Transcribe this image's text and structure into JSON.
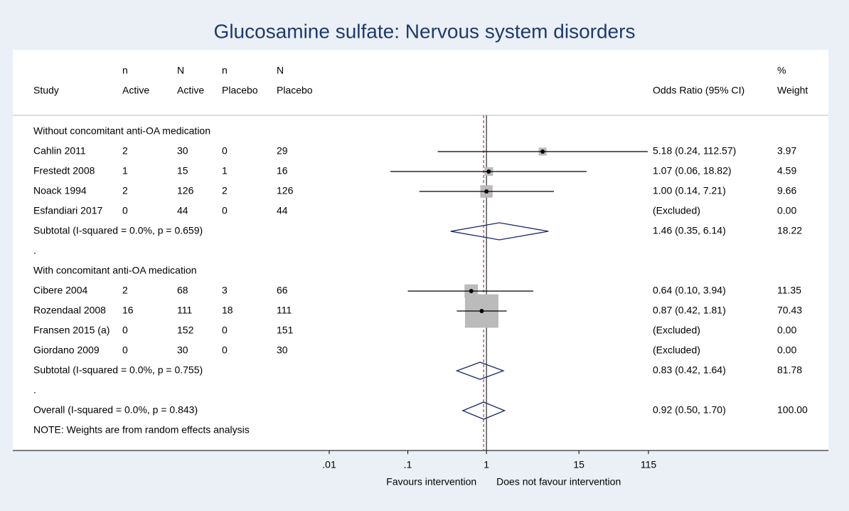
{
  "chart_data": {
    "type": "forest",
    "title": "Glucosamine sulfate: Nervous system disorders",
    "columns": [
      {
        "line2": "Study"
      },
      {
        "line1": "n",
        "line2": "Active"
      },
      {
        "line1": "N",
        "line2": "Active"
      },
      {
        "line1": "n",
        "line2": "Placebo"
      },
      {
        "line1": "N",
        "line2": "Placebo"
      },
      {
        "line2": "Odds Ratio (95% CI)"
      },
      {
        "line1": "%",
        "line2": "Weight"
      }
    ],
    "rows": [
      {
        "kind": "group",
        "label": "Without concomitant anti-OA medication"
      },
      {
        "kind": "study",
        "label": "Cahlin 2011",
        "counts": [
          2,
          30,
          0,
          29
        ],
        "or": 5.18,
        "lo": 0.24,
        "hi": 112.57,
        "ci_label": "5.18 (0.24, 112.57)",
        "weight": 3.97
      },
      {
        "kind": "study",
        "label": "Frestedt 2008",
        "counts": [
          1,
          15,
          1,
          16
        ],
        "or": 1.07,
        "lo": 0.06,
        "hi": 18.82,
        "ci_label": "1.07 (0.06, 18.82)",
        "weight": 4.59
      },
      {
        "kind": "study",
        "label": "Noack 1994",
        "counts": [
          2,
          126,
          2,
          126
        ],
        "or": 1.0,
        "lo": 0.14,
        "hi": 7.21,
        "ci_label": "1.00 (0.14, 7.21)",
        "weight": 9.66
      },
      {
        "kind": "study",
        "label": "Esfandiari 2017",
        "counts": [
          0,
          44,
          0,
          44
        ],
        "ci_label": "(Excluded)",
        "weight": 0,
        "weight_label": "0.00"
      },
      {
        "kind": "subtotal",
        "label": "Subtotal  (I-squared = 0.0%, p = 0.659)",
        "or": 1.46,
        "lo": 0.35,
        "hi": 6.14,
        "ci_label": "1.46 (0.35, 6.14)",
        "weight": 18.22
      },
      {
        "kind": "spacer",
        "label": "."
      },
      {
        "kind": "group",
        "label": "With concomitant anti-OA medication"
      },
      {
        "kind": "study",
        "label": "Cibere 2004",
        "counts": [
          2,
          68,
          3,
          66
        ],
        "or": 0.64,
        "lo": 0.1,
        "hi": 3.94,
        "ci_label": "0.64 (0.10, 3.94)",
        "weight": 11.35
      },
      {
        "kind": "study",
        "label": "Rozendaal 2008",
        "counts": [
          16,
          111,
          18,
          111
        ],
        "or": 0.87,
        "lo": 0.42,
        "hi": 1.81,
        "ci_label": "0.87 (0.42, 1.81)",
        "weight": 70.43
      },
      {
        "kind": "study",
        "label": "Fransen 2015 (a)",
        "counts": [
          0,
          152,
          0,
          151
        ],
        "ci_label": "(Excluded)",
        "weight": 0,
        "weight_label": "0.00"
      },
      {
        "kind": "study",
        "label": "Giordano 2009",
        "counts": [
          0,
          30,
          0,
          30
        ],
        "ci_label": "(Excluded)",
        "weight": 0,
        "weight_label": "0.00"
      },
      {
        "kind": "subtotal",
        "label": "Subtotal  (I-squared = 0.0%, p = 0.755)",
        "or": 0.83,
        "lo": 0.42,
        "hi": 1.64,
        "ci_label": "0.83 (0.42, 1.64)",
        "weight": 81.78
      },
      {
        "kind": "spacer",
        "label": "."
      },
      {
        "kind": "overall",
        "label": "Overall  (I-squared = 0.0%, p = 0.843)",
        "or": 0.92,
        "lo": 0.5,
        "hi": 1.7,
        "ci_label": "0.92 (0.50, 1.70)",
        "weight": 100,
        "weight_label": "100.00"
      },
      {
        "kind": "note",
        "label": "NOTE: Weights are from random effects analysis"
      }
    ],
    "xscale": "log",
    "xlim": [
      0.01,
      115
    ],
    "xticks": [
      {
        "value": 0.01,
        "label": ".01"
      },
      {
        "value": 0.1,
        "label": ".1"
      },
      1,
      15,
      115
    ],
    "null_line": 1,
    "xlabel_left": "Favours intervention",
    "xlabel_right": "Does not favour intervention"
  }
}
